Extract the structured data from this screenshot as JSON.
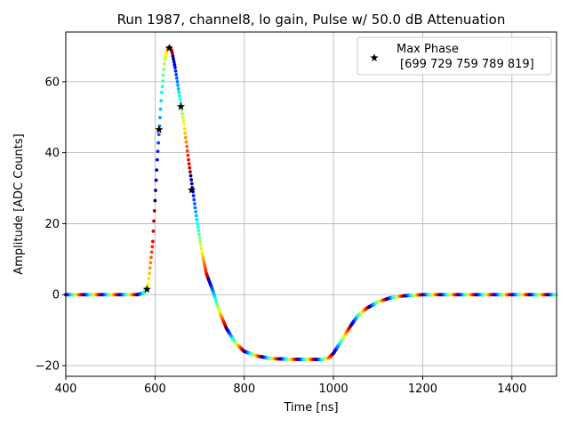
{
  "chart_data": {
    "type": "scatter",
    "title": "Run 1987, channel8, lo gain, Pulse w/ 50.0 dB Attenuation",
    "xlabel": "Time [ns]",
    "ylabel": "Amplitude [ADC Counts]",
    "xlim": [
      400,
      1500
    ],
    "ylim": [
      -23,
      74
    ],
    "xticks": [
      400,
      600,
      800,
      1000,
      1200,
      1400
    ],
    "yticks": [
      -20,
      0,
      20,
      40,
      60
    ],
    "grid": true,
    "legend": {
      "placement": "top-right",
      "entries": [
        {
          "label_line1": "Max Phase",
          "label_line2": "[699 729 759 789 819]",
          "marker": "star"
        }
      ]
    },
    "colormap": "jet",
    "pulse_curve": {
      "x": [
        400,
        560,
        575,
        585,
        595,
        605,
        615,
        622,
        628,
        633,
        638,
        645,
        655,
        665,
        675,
        685,
        695,
        705,
        715,
        730,
        745,
        760,
        780,
        800,
        830,
        860,
        900,
        940,
        975,
        990,
        1000,
        1010,
        1025,
        1040,
        1055,
        1075,
        1100,
        1130,
        1160,
        1200,
        1300,
        1400,
        1500
      ],
      "y": [
        0,
        0,
        0.5,
        3,
        15,
        38,
        57,
        66,
        69.5,
        69.8,
        68.5,
        64,
        56,
        48,
        38,
        29,
        20,
        12,
        6,
        1,
        -5,
        -9.5,
        -13.5,
        -16,
        -17.3,
        -18,
        -18.2,
        -18.2,
        -18.3,
        -17.8,
        -16.5,
        -14.5,
        -11.5,
        -8.5,
        -5.8,
        -3.8,
        -2,
        -0.8,
        -0.3,
        0,
        0,
        0,
        0
      ]
    },
    "max_phase_points": {
      "x": [
        582,
        609,
        632,
        658,
        682
      ],
      "y": [
        1.5,
        46.5,
        69.5,
        53,
        29.5
      ]
    }
  }
}
